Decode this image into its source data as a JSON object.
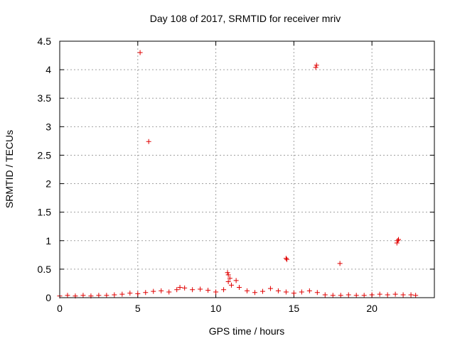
{
  "chart_data": {
    "type": "scatter",
    "title": "Day 108 of 2017, SRMTID for receiver mriv",
    "xlabel": "GPS time / hours",
    "ylabel": "SRMTID / TECUs",
    "xlim": [
      0,
      24
    ],
    "ylim": [
      0,
      4.5
    ],
    "xticks": [
      0,
      5,
      10,
      15,
      20
    ],
    "yticks": [
      0,
      0.5,
      1,
      1.5,
      2,
      2.5,
      3,
      3.5,
      4,
      4.5
    ],
    "xtick_labels": [
      "0",
      "5",
      "10",
      "15",
      "20"
    ],
    "ytick_labels": [
      "0",
      "0.5",
      "1",
      "1.5",
      "2",
      "2.5",
      "3",
      "3.5",
      "4",
      "4.5"
    ],
    "grid": true,
    "marker": "+",
    "color": "#e00000",
    "series": [
      {
        "x": [
          0.0,
          0.5,
          1.0,
          1.5,
          2.0,
          2.5,
          3.0,
          3.5,
          4.0,
          4.5,
          5.0,
          5.5,
          6.0,
          6.5,
          7.0,
          7.5,
          7.7,
          8.0,
          8.5,
          9.0,
          9.5,
          10.0,
          10.5,
          10.8,
          11.0,
          11.5,
          12.0,
          12.5,
          13.0,
          13.5,
          14.0,
          14.5,
          15.0,
          15.5,
          16.0,
          16.5,
          17.0,
          17.5,
          18.0,
          18.5,
          19.0,
          19.5,
          20.0,
          20.5,
          21.0,
          21.5,
          22.0,
          22.5,
          22.8
        ],
        "y": [
          0.03,
          0.04,
          0.03,
          0.04,
          0.03,
          0.04,
          0.04,
          0.05,
          0.06,
          0.08,
          0.07,
          0.09,
          0.11,
          0.12,
          0.1,
          0.14,
          0.18,
          0.17,
          0.14,
          0.15,
          0.13,
          0.1,
          0.14,
          0.28,
          0.22,
          0.18,
          0.12,
          0.09,
          0.11,
          0.16,
          0.12,
          0.1,
          0.08,
          0.1,
          0.12,
          0.09,
          0.05,
          0.04,
          0.04,
          0.05,
          0.04,
          0.04,
          0.05,
          0.06,
          0.05,
          0.06,
          0.05,
          0.05,
          0.04
        ]
      },
      {
        "x": [
          5.15,
          5.7,
          10.75,
          10.8,
          10.9,
          11.3,
          14.5,
          14.55,
          16.4,
          16.45,
          17.95,
          21.6,
          21.65,
          21.7
        ],
        "y": [
          4.3,
          2.74,
          0.44,
          0.4,
          0.34,
          0.3,
          0.69,
          0.67,
          4.04,
          4.08,
          0.6,
          0.96,
          1.0,
          1.02
        ]
      }
    ]
  }
}
